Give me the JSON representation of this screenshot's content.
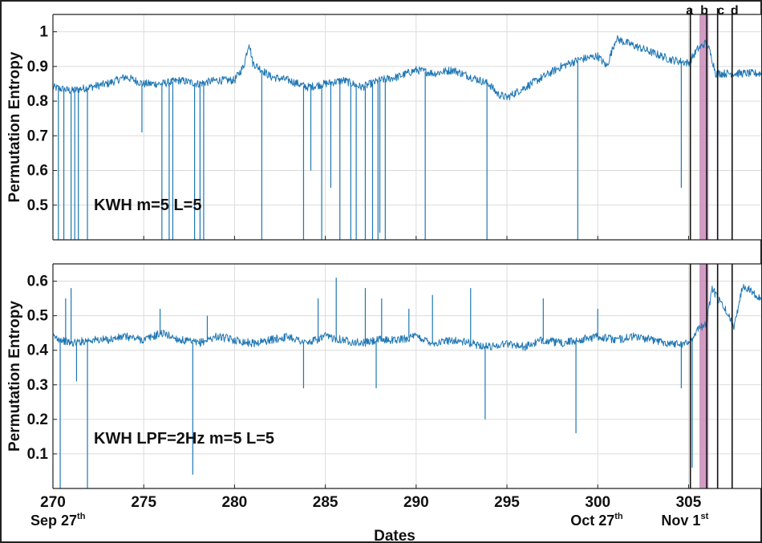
{
  "chart_data": [
    {
      "type": "line",
      "ylabel": "Permutation Entropy",
      "annotation": "KWH m=5 L=5",
      "xlim": [
        270,
        309
      ],
      "ylim": [
        0.4,
        1.05
      ],
      "yticks": [
        0.5,
        0.6,
        0.7,
        0.8,
        0.9,
        1
      ],
      "ytick_labels": [
        "0.5",
        "0.6",
        "0.7",
        "0.8",
        "0.9",
        "1"
      ],
      "grid": true,
      "series": [
        {
          "color": "#1f77b4",
          "x": [
            270,
            271,
            272,
            273,
            274,
            275,
            276,
            277,
            278,
            279,
            280,
            280.5,
            280.8,
            281,
            282,
            283,
            284,
            285,
            286,
            287,
            288,
            289,
            290,
            291,
            292,
            293,
            294,
            294.5,
            295,
            296,
            297,
            298,
            299,
            300,
            300.5,
            301,
            302,
            303,
            304,
            305,
            305.5,
            306,
            306.3,
            306.5,
            307,
            308,
            309
          ],
          "y": [
            0.84,
            0.83,
            0.84,
            0.85,
            0.87,
            0.85,
            0.85,
            0.86,
            0.85,
            0.86,
            0.86,
            0.9,
            0.97,
            0.91,
            0.87,
            0.86,
            0.84,
            0.85,
            0.86,
            0.84,
            0.86,
            0.87,
            0.89,
            0.88,
            0.89,
            0.87,
            0.85,
            0.82,
            0.81,
            0.84,
            0.87,
            0.9,
            0.92,
            0.93,
            0.9,
            0.98,
            0.96,
            0.94,
            0.92,
            0.91,
            0.95,
            0.97,
            0.92,
            0.88,
            0.88,
            0.88,
            0.88
          ]
        }
      ],
      "spikes": [
        {
          "x": 270.3,
          "y": 0.4
        },
        {
          "x": 270.6,
          "y": 0.4
        },
        {
          "x": 271.0,
          "y": 0.4
        },
        {
          "x": 271.2,
          "y": 0.4
        },
        {
          "x": 271.4,
          "y": 0.4
        },
        {
          "x": 271.9,
          "y": 0.4
        },
        {
          "x": 274.9,
          "y": 0.71
        },
        {
          "x": 276.0,
          "y": 0.4
        },
        {
          "x": 276.4,
          "y": 0.4
        },
        {
          "x": 276.6,
          "y": 0.4
        },
        {
          "x": 277.8,
          "y": 0.4
        },
        {
          "x": 278.1,
          "y": 0.4
        },
        {
          "x": 278.3,
          "y": 0.4
        },
        {
          "x": 281.5,
          "y": 0.4
        },
        {
          "x": 283.8,
          "y": 0.4
        },
        {
          "x": 284.2,
          "y": 0.6
        },
        {
          "x": 284.8,
          "y": 0.4
        },
        {
          "x": 285.3,
          "y": 0.55
        },
        {
          "x": 285.8,
          "y": 0.4
        },
        {
          "x": 286.4,
          "y": 0.4
        },
        {
          "x": 286.7,
          "y": 0.4
        },
        {
          "x": 287.2,
          "y": 0.4
        },
        {
          "x": 287.6,
          "y": 0.4
        },
        {
          "x": 287.9,
          "y": 0.4
        },
        {
          "x": 288.0,
          "y": 0.42
        },
        {
          "x": 288.3,
          "y": 0.4
        },
        {
          "x": 290.5,
          "y": 0.4
        },
        {
          "x": 293.9,
          "y": 0.4
        },
        {
          "x": 298.9,
          "y": 0.4
        },
        {
          "x": 304.6,
          "y": 0.55
        }
      ],
      "events": [
        {
          "label": "a",
          "x": 305.1
        },
        {
          "label": "b",
          "x": 306.0
        },
        {
          "label": "c",
          "x": 306.6
        },
        {
          "label": "d",
          "x": 307.4
        }
      ],
      "highlight": {
        "x0": 305.6,
        "x1": 306.1,
        "color": "#c98bb9"
      }
    },
    {
      "type": "line",
      "ylabel": "Permutation Entropy",
      "annotation": "KWH LPF=2Hz m=5 L=5",
      "xlim": [
        270,
        309
      ],
      "ylim": [
        0,
        0.65
      ],
      "yticks": [
        0.1,
        0.2,
        0.3,
        0.4,
        0.5,
        0.6
      ],
      "ytick_labels": [
        "0.1",
        "0.2",
        "0.3",
        "0.4",
        "0.5",
        "0.6"
      ],
      "xticks": [
        270,
        275,
        280,
        285,
        290,
        295,
        300,
        305
      ],
      "xtick_labels": [
        "270",
        "275",
        "280",
        "285",
        "290",
        "295",
        "300",
        "305"
      ],
      "xlabel": "Dates",
      "grid": true,
      "date_labels": [
        {
          "text": "Sep 27",
          "sup": "th",
          "x": 270
        },
        {
          "text": "Oct 27",
          "sup": "th",
          "x": 300
        },
        {
          "text": "Nov 1",
          "sup": "st",
          "x": 305
        }
      ],
      "series": [
        {
          "color": "#1f77b4",
          "x": [
            270,
            271,
            272,
            273,
            274,
            275,
            276,
            277,
            278,
            279,
            280,
            281,
            282,
            283,
            284,
            285,
            286,
            287,
            288,
            289,
            290,
            291,
            292,
            293,
            294,
            295,
            296,
            297,
            298,
            299,
            300,
            301,
            302,
            303,
            304,
            305,
            305.5,
            306,
            306.3,
            306.6,
            307,
            307.5,
            308,
            308.5,
            309
          ],
          "y": [
            0.44,
            0.42,
            0.43,
            0.43,
            0.44,
            0.43,
            0.45,
            0.43,
            0.42,
            0.44,
            0.43,
            0.42,
            0.43,
            0.44,
            0.42,
            0.44,
            0.43,
            0.42,
            0.43,
            0.43,
            0.44,
            0.42,
            0.43,
            0.42,
            0.41,
            0.42,
            0.41,
            0.43,
            0.42,
            0.43,
            0.44,
            0.43,
            0.44,
            0.43,
            0.42,
            0.42,
            0.46,
            0.48,
            0.58,
            0.55,
            0.52,
            0.47,
            0.59,
            0.57,
            0.55
          ]
        }
      ],
      "spikes": [
        {
          "x": 270.4,
          "y": 0.0
        },
        {
          "x": 270.7,
          "y": 0.55
        },
        {
          "x": 271.0,
          "y": 0.58
        },
        {
          "x": 271.3,
          "y": 0.31
        },
        {
          "x": 271.9,
          "y": 0.0
        },
        {
          "x": 275.9,
          "y": 0.52
        },
        {
          "x": 277.7,
          "y": 0.04
        },
        {
          "x": 278.5,
          "y": 0.5
        },
        {
          "x": 283.8,
          "y": 0.29
        },
        {
          "x": 284.6,
          "y": 0.55
        },
        {
          "x": 285.6,
          "y": 0.61
        },
        {
          "x": 287.2,
          "y": 0.58
        },
        {
          "x": 287.8,
          "y": 0.29
        },
        {
          "x": 288.1,
          "y": 0.55
        },
        {
          "x": 289.6,
          "y": 0.52
        },
        {
          "x": 290.9,
          "y": 0.56
        },
        {
          "x": 293.0,
          "y": 0.58
        },
        {
          "x": 293.8,
          "y": 0.2
        },
        {
          "x": 297.0,
          "y": 0.55
        },
        {
          "x": 298.8,
          "y": 0.16
        },
        {
          "x": 300.0,
          "y": 0.52
        },
        {
          "x": 304.6,
          "y": 0.29
        },
        {
          "x": 305.2,
          "y": 0.06
        }
      ],
      "events": [
        {
          "label": "a",
          "x": 305.1
        },
        {
          "label": "b",
          "x": 306.0
        },
        {
          "label": "c",
          "x": 306.6
        },
        {
          "label": "d",
          "x": 307.4
        }
      ],
      "highlight": {
        "x0": 305.6,
        "x1": 306.1,
        "color": "#c98bb9"
      }
    }
  ]
}
